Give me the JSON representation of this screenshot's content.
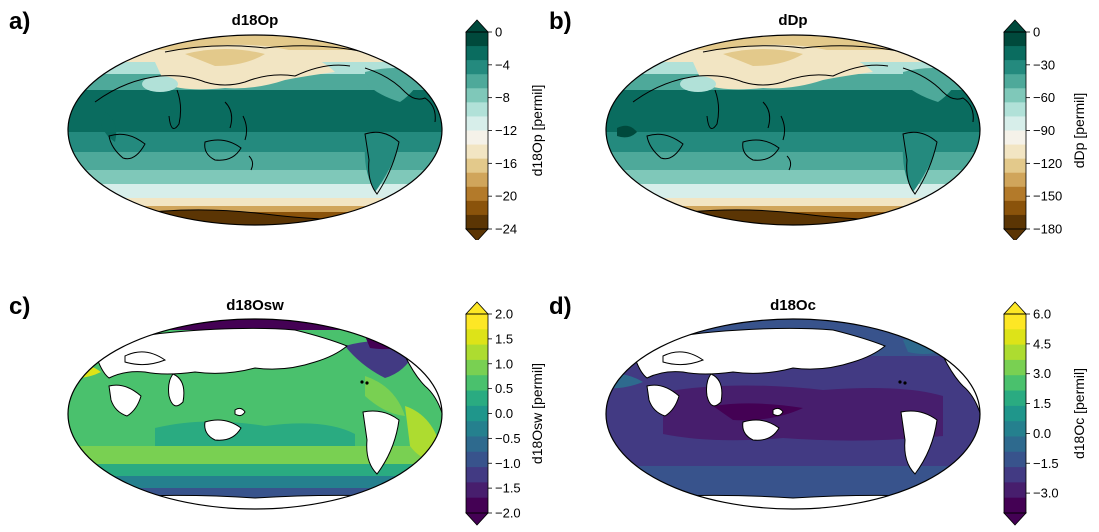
{
  "panels": [
    {
      "id": "a",
      "letter": "a)",
      "title": "d18Op",
      "colorbar_label": "d18Op [permil]",
      "ticks": [
        "0",
        "−4",
        "−8",
        "−12",
        "−16",
        "−20",
        "−24"
      ],
      "tick_values": [
        0,
        -4,
        -8,
        -12,
        -16,
        -20,
        -24
      ],
      "range": [
        -24,
        0
      ],
      "colors": [
        "#5b3504",
        "#8a530b",
        "#b37a2a",
        "#d0a55b",
        "#e3c98b",
        "#f2e5c3",
        "#f5f2e9",
        "#d7eeea",
        "#b1e1d8",
        "#7fc8b9",
        "#4ea99a",
        "#248a7e",
        "#0a6c5f",
        "#00493c"
      ]
    },
    {
      "id": "b",
      "letter": "b)",
      "title": "dDp",
      "colorbar_label": "dDp [permil]",
      "ticks": [
        "0",
        "−30",
        "−60",
        "−90",
        "−120",
        "−150",
        "−180"
      ],
      "tick_values": [
        0,
        -30,
        -60,
        -90,
        -120,
        -150,
        -180
      ],
      "range": [
        -180,
        0
      ],
      "colors": [
        "#5b3504",
        "#8a530b",
        "#b37a2a",
        "#d0a55b",
        "#e3c98b",
        "#f2e5c3",
        "#f5f2e9",
        "#d7eeea",
        "#b1e1d8",
        "#7fc8b9",
        "#4ea99a",
        "#248a7e",
        "#0a6c5f",
        "#00493c"
      ]
    },
    {
      "id": "c",
      "letter": "c)",
      "title": "d18Osw",
      "colorbar_label": "d18Osw [permil]",
      "ticks": [
        "2.0",
        "1.5",
        "1.0",
        "0.5",
        "0.0",
        "−0.5",
        "−1.0",
        "−1.5",
        "−2.0"
      ],
      "tick_values": [
        2.0,
        1.5,
        1.0,
        0.5,
        0.0,
        -0.5,
        -1.0,
        -1.5,
        -2.0
      ],
      "range": [
        -2,
        2
      ],
      "colors": [
        "#440154",
        "#471e6d",
        "#423a83",
        "#38538c",
        "#2e6a8e",
        "#25808e",
        "#1f968b",
        "#2aab81",
        "#4ac16d",
        "#79d052",
        "#addc30",
        "#dde318",
        "#fde725"
      ]
    },
    {
      "id": "d",
      "letter": "d)",
      "title": "d18Oc",
      "colorbar_label": "d18Oc [permil]",
      "ticks": [
        "6.0",
        "4.5",
        "3.0",
        "1.5",
        "0.0",
        "−1.5",
        "−3.0"
      ],
      "tick_values": [
        6.0,
        4.5,
        3.0,
        1.5,
        0.0,
        -1.5,
        -3.0
      ],
      "range": [
        -4,
        6
      ],
      "colors": [
        "#440154",
        "#471e6d",
        "#423a83",
        "#38538c",
        "#2e6a8e",
        "#25808e",
        "#1f968b",
        "#2aab81",
        "#4ac16d",
        "#79d052",
        "#addc30",
        "#dde318",
        "#fde725"
      ]
    }
  ]
}
